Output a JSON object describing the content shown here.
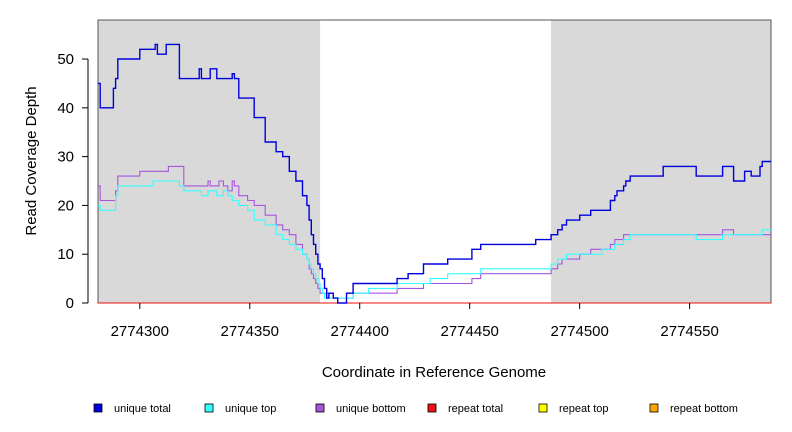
{
  "chart_data": {
    "type": "line",
    "xlabel": "Coordinate in Reference Genome",
    "ylabel": "Read Coverage Depth",
    "xlim": [
      2774281,
      2774587
    ],
    "ylim": [
      0,
      58
    ],
    "x_ticks": [
      2774300,
      2774350,
      2774400,
      2774450,
      2774500,
      2774550
    ],
    "y_ticks": [
      0,
      10,
      20,
      30,
      40,
      50
    ],
    "shaded_regions": [
      {
        "start": 2774281,
        "end": 2774382,
        "color": "#d9d9d9"
      },
      {
        "start": 2774487,
        "end": 2774587,
        "color": "#d9d9d9"
      }
    ],
    "series": [
      {
        "name": "unique total",
        "color": "#0000dd",
        "x": [
          2774281,
          2774282,
          2774287,
          2774288,
          2774289,
          2774290,
          2774300,
          2774306,
          2774307,
          2774308,
          2774312,
          2774313,
          2774318,
          2774320,
          2774322,
          2774327,
          2774328,
          2774331,
          2774332,
          2774335,
          2774336,
          2774338,
          2774340,
          2774342,
          2774343,
          2774345,
          2774349,
          2774352,
          2774357,
          2774362,
          2774365,
          2774368,
          2774371,
          2774374,
          2774376,
          2774377,
          2774378,
          2774379,
          2774380,
          2774381,
          2774382,
          2774383,
          2774384,
          2774385,
          2774386,
          2774387,
          2774388,
          2774390,
          2774394,
          2774396,
          2774397,
          2774399,
          2774404,
          2774413,
          2774417,
          2774422,
          2774429,
          2774432,
          2774440,
          2774451,
          2774455,
          2774480,
          2774487,
          2774490,
          2774492,
          2774494,
          2774500,
          2774505,
          2774510,
          2774514,
          2774516,
          2774517,
          2774520,
          2774521,
          2774523,
          2774538,
          2774544,
          2774548,
          2774553,
          2774555,
          2774558,
          2774565,
          2774570,
          2774575,
          2774578,
          2774581,
          2774582,
          2774583,
          2774586
        ],
        "y": [
          45,
          40,
          40,
          44,
          46,
          50,
          52,
          52,
          53,
          51,
          53,
          53,
          46,
          46,
          46,
          48,
          46,
          46,
          48,
          46,
          46,
          46,
          46,
          47,
          46,
          42,
          42,
          38,
          33,
          31,
          30,
          27,
          25,
          22,
          20,
          17,
          14,
          12,
          10,
          8,
          7,
          5,
          3,
          1,
          2,
          2,
          1,
          0,
          2,
          2,
          4,
          4,
          4,
          4,
          5,
          6,
          8,
          8,
          9,
          11,
          12,
          13,
          14,
          15,
          16,
          17,
          18,
          19,
          19,
          21,
          22,
          23,
          24,
          25,
          26,
          28,
          28,
          28,
          26,
          26,
          26,
          28,
          25,
          27,
          26,
          26,
          28,
          29,
          29
        ]
      },
      {
        "name": "unique top",
        "color": "#33ffff",
        "x": [
          2774281,
          2774282,
          2774288,
          2774289,
          2774290,
          2774300,
          2774306,
          2774313,
          2774318,
          2774320,
          2774322,
          2774327,
          2774328,
          2774331,
          2774332,
          2774335,
          2774336,
          2774338,
          2774340,
          2774342,
          2774343,
          2774345,
          2774349,
          2774352,
          2774357,
          2774362,
          2774365,
          2774368,
          2774371,
          2774374,
          2774376,
          2774377,
          2774378,
          2774379,
          2774380,
          2774381,
          2774382,
          2774383,
          2774384,
          2774385,
          2774386,
          2774387,
          2774388,
          2774390,
          2774394,
          2774396,
          2774397,
          2774399,
          2774404,
          2774413,
          2774417,
          2774422,
          2774429,
          2774432,
          2774440,
          2774451,
          2774455,
          2774480,
          2774487,
          2774490,
          2774492,
          2774494,
          2774500,
          2774505,
          2774510,
          2774514,
          2774516,
          2774517,
          2774520,
          2774521,
          2774523,
          2774538,
          2774544,
          2774548,
          2774553,
          2774555,
          2774558,
          2774565,
          2774570,
          2774575,
          2774578,
          2774581,
          2774582,
          2774583,
          2774586
        ],
        "y": [
          20,
          19,
          19,
          22,
          24,
          24,
          25,
          25,
          24,
          23,
          23,
          23,
          22,
          23,
          23,
          22,
          22,
          23,
          22,
          21,
          21,
          20,
          19,
          17,
          16,
          14,
          13,
          12,
          11,
          10,
          9,
          8,
          7,
          6,
          5,
          4,
          3,
          2,
          1,
          1,
          1,
          1,
          1,
          1,
          1,
          1,
          2,
          2,
          3,
          3,
          4,
          4,
          4,
          5,
          6,
          6,
          7,
          7,
          8,
          9,
          9,
          10,
          10,
          10,
          11,
          11,
          12,
          12,
          13,
          13,
          14,
          14,
          14,
          14,
          13,
          13,
          13,
          14,
          14,
          14,
          14,
          14,
          14,
          15,
          15
        ]
      },
      {
        "name": "unique bottom",
        "color": "#a855dd",
        "x": [
          2774281,
          2774282,
          2774288,
          2774289,
          2774290,
          2774300,
          2774306,
          2774313,
          2774318,
          2774320,
          2774322,
          2774327,
          2774328,
          2774331,
          2774332,
          2774335,
          2774336,
          2774338,
          2774340,
          2774342,
          2774343,
          2774345,
          2774349,
          2774352,
          2774357,
          2774362,
          2774365,
          2774368,
          2774371,
          2774374,
          2774376,
          2774377,
          2774378,
          2774379,
          2774380,
          2774381,
          2774382,
          2774383,
          2774384,
          2774385,
          2774386,
          2774387,
          2774388,
          2774390,
          2774394,
          2774396,
          2774397,
          2774399,
          2774404,
          2774413,
          2774417,
          2774422,
          2774429,
          2774432,
          2774440,
          2774451,
          2774455,
          2774480,
          2774487,
          2774490,
          2774492,
          2774494,
          2774500,
          2774505,
          2774510,
          2774514,
          2774516,
          2774517,
          2774520,
          2774521,
          2774523,
          2774538,
          2774544,
          2774548,
          2774553,
          2774555,
          2774558,
          2774565,
          2774570,
          2774575,
          2774578,
          2774581,
          2774582,
          2774583,
          2774586
        ],
        "y": [
          24,
          21,
          21,
          23,
          26,
          27,
          27,
          28,
          28,
          24,
          24,
          24,
          24,
          25,
          24,
          24,
          25,
          24,
          23,
          25,
          24,
          22,
          21,
          20,
          18,
          16,
          15,
          14,
          12,
          10,
          9,
          7,
          6,
          5,
          4,
          3,
          2,
          2,
          2,
          2,
          2,
          2,
          1,
          1,
          1,
          1,
          2,
          2,
          2,
          2,
          3,
          3,
          4,
          4,
          4,
          5,
          6,
          6,
          7,
          8,
          9,
          9,
          10,
          11,
          11,
          12,
          13,
          13,
          14,
          14,
          14,
          14,
          14,
          14,
          14,
          14,
          14,
          15,
          14,
          14,
          14,
          14,
          14,
          14,
          14
        ]
      },
      {
        "name": "repeat total",
        "color": "#ee1111",
        "x": [
          2774281,
          2774587
        ],
        "y": [
          0,
          0
        ]
      },
      {
        "name": "repeat top",
        "color": "#ffff00",
        "x": [
          2774281,
          2774587
        ],
        "y": [
          0,
          0
        ]
      },
      {
        "name": "repeat bottom",
        "color": "#ffa500",
        "x": [
          2774281,
          2774587
        ],
        "y": [
          0,
          0
        ]
      }
    ],
    "legend": [
      {
        "label": "unique total",
        "color": "#0000dd"
      },
      {
        "label": "unique top",
        "color": "#33ffff"
      },
      {
        "label": "unique bottom",
        "color": "#a855dd"
      },
      {
        "label": "repeat total",
        "color": "#ee1111"
      },
      {
        "label": "repeat top",
        "color": "#ffff00"
      },
      {
        "label": "repeat bottom",
        "color": "#ffa500"
      }
    ],
    "legend_position": "bottom"
  }
}
